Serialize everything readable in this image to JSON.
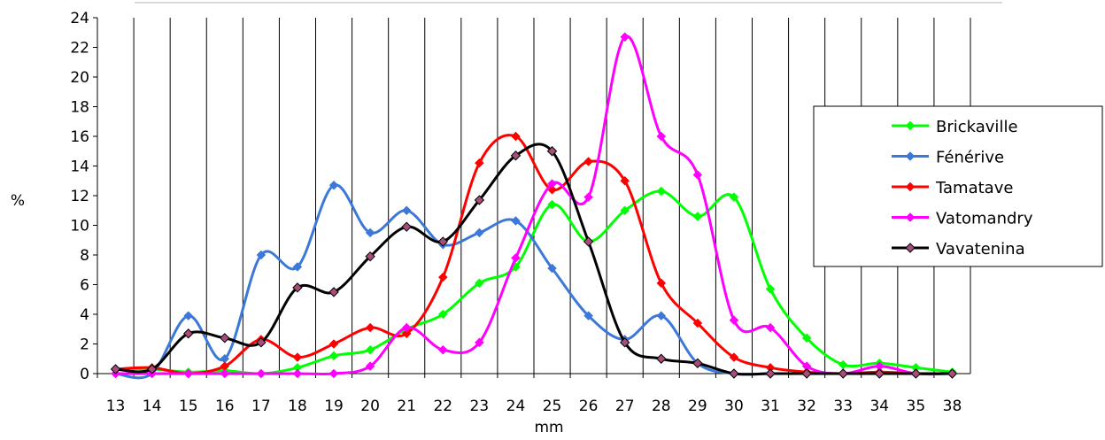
{
  "chart_data": {
    "type": "line",
    "title": "",
    "xlabel": "mm",
    "ylabel": "%",
    "categories": [
      "13",
      "14",
      "15",
      "16",
      "17",
      "18",
      "19",
      "20",
      "21",
      "22",
      "23",
      "24",
      "25",
      "26",
      "27",
      "28",
      "29",
      "30",
      "31",
      "32",
      "33",
      "34",
      "35",
      "38"
    ],
    "ylim": [
      0,
      24
    ],
    "yticks": [
      0,
      2,
      4,
      6,
      8,
      10,
      12,
      14,
      16,
      18,
      20,
      22,
      24
    ],
    "grid": "vertical",
    "legend": "right",
    "series": [
      {
        "name": "Brickaville",
        "color": "#00ff00",
        "values": [
          0.3,
          0.3,
          0.1,
          0.2,
          0.0,
          0.4,
          1.2,
          1.6,
          3.0,
          4.0,
          6.1,
          7.2,
          11.4,
          8.9,
          11.0,
          12.3,
          10.6,
          11.9,
          5.7,
          2.4,
          0.6,
          0.7,
          0.4,
          0.1
        ]
      },
      {
        "name": "Fénérive",
        "color": "#3c78d8",
        "values": [
          0.0,
          0.0,
          3.9,
          1.0,
          8.0,
          7.2,
          12.7,
          9.5,
          11.0,
          8.7,
          9.5,
          10.3,
          7.1,
          3.9,
          2.3,
          3.9,
          0.7,
          0.0,
          0.0,
          0.0,
          0.0,
          0.0,
          0.0,
          0.0
        ]
      },
      {
        "name": "Tamatave",
        "color": "#ff0000",
        "values": [
          0.3,
          0.4,
          0.0,
          0.5,
          2.3,
          1.1,
          2.0,
          3.1,
          2.7,
          6.5,
          14.2,
          16.0,
          12.4,
          14.3,
          13.0,
          6.1,
          3.4,
          1.1,
          0.4,
          0.1,
          0.0,
          0.1,
          0.0,
          0.0
        ]
      },
      {
        "name": "Vatomandry",
        "color": "#ff00ff",
        "values": [
          0.0,
          0.0,
          0.0,
          0.0,
          0.0,
          0.0,
          0.0,
          0.5,
          3.1,
          1.6,
          2.1,
          7.8,
          12.8,
          11.9,
          22.7,
          16.0,
          13.4,
          3.6,
          3.1,
          0.5,
          0.0,
          0.5,
          0.0,
          0.0
        ]
      },
      {
        "name": "Vavatenina",
        "color": "#000000",
        "values": [
          0.3,
          0.3,
          2.7,
          2.4,
          2.1,
          5.8,
          5.5,
          7.9,
          9.9,
          8.9,
          11.7,
          14.7,
          15.0,
          8.9,
          2.1,
          1.0,
          0.7,
          0.0,
          0.0,
          0.0,
          0.0,
          0.0,
          0.0,
          0.0
        ]
      }
    ]
  }
}
